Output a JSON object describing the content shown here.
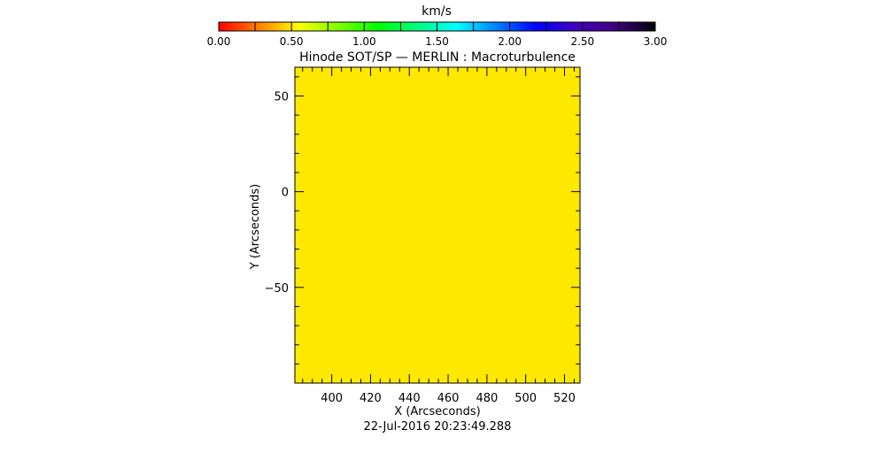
{
  "chart_data": {
    "type": "heatmap",
    "title": "Hinode SOT/SP — MERLIN : Macroturbulence",
    "xlabel": "X (Arcseconds)",
    "ylabel": "Y (Arcseconds)",
    "footer": "22-Jul-2016 20:23:49.288",
    "xlim": [
      381,
      528
    ],
    "ylim": [
      -100,
      65
    ],
    "xticks": [
      400,
      420,
      440,
      460,
      480,
      500,
      520
    ],
    "yticks": [
      50,
      0,
      -50
    ],
    "fill_value": 0.75,
    "fill_color": "#ffe800",
    "colorbar": {
      "label": "km/s",
      "range": [
        0,
        3
      ],
      "ticks": [
        "0.00",
        "0.50",
        "1.00",
        "1.50",
        "2.00",
        "2.50",
        "3.00"
      ],
      "colors": [
        "#ff0000",
        "#ff8000",
        "#ffff00",
        "#80ff00",
        "#00ff00",
        "#00ff80",
        "#00ffff",
        "#0080ff",
        "#0000ff",
        "#4000c0",
        "#400080",
        "#000000"
      ]
    }
  }
}
